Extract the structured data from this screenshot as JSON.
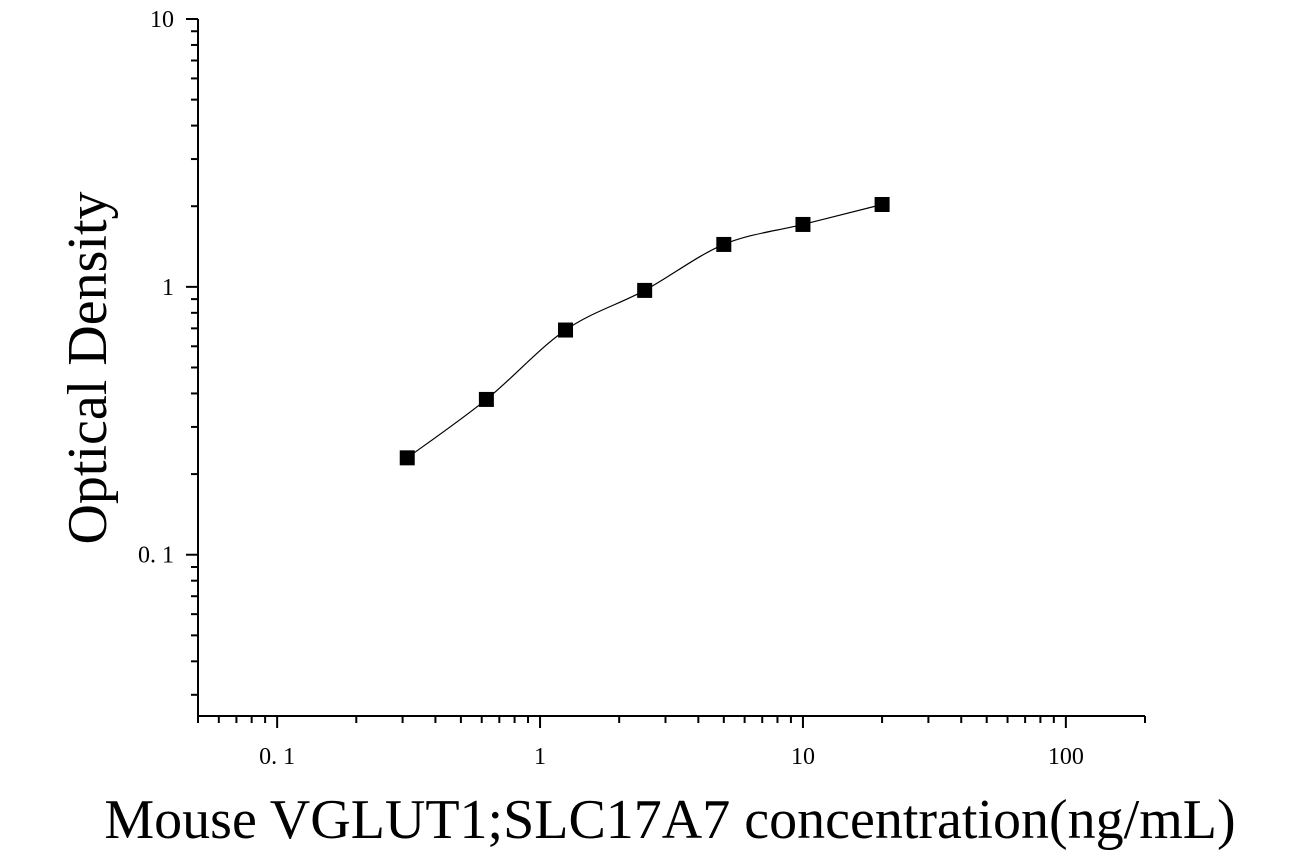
{
  "chart_data": {
    "type": "scatter",
    "title": "",
    "xlabel": "Mouse VGLUT1;SLC17A7 concentration(ng/mL)",
    "ylabel": "Optical Density",
    "x_scale": "log",
    "y_scale": "log",
    "xlim": [
      0.05,
      200
    ],
    "ylim": [
      0.025,
      10
    ],
    "x_ticks": [
      {
        "value": 0.1,
        "label": "0. 1"
      },
      {
        "value": 1,
        "label": "1"
      },
      {
        "value": 10,
        "label": "10"
      },
      {
        "value": 100,
        "label": "100"
      }
    ],
    "y_ticks": [
      {
        "value": 0.1,
        "label": "0. 1"
      },
      {
        "value": 1,
        "label": "1"
      },
      {
        "value": 10,
        "label": "10"
      }
    ],
    "grid": false,
    "legend": "none",
    "series": [
      {
        "marker": "square",
        "fit_curve": true,
        "color": "#000000",
        "x": [
          0.3125,
          0.625,
          1.25,
          2.5,
          5,
          10,
          20
        ],
        "y": [
          0.23,
          0.38,
          0.69,
          0.97,
          1.44,
          1.71,
          2.03
        ]
      }
    ]
  }
}
